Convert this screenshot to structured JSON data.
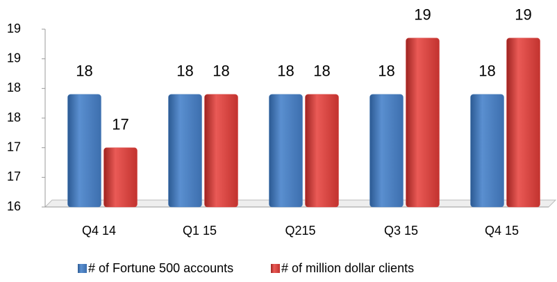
{
  "chart_data": {
    "type": "bar",
    "categories": [
      "Q4 14",
      "Q1 15",
      "Q215",
      "Q3 15",
      "Q4 15"
    ],
    "series": [
      {
        "name": "# of Fortune 500 accounts",
        "color": "#4a7ebb",
        "values": [
          17.9,
          17.9,
          17.9,
          17.9,
          17.9
        ],
        "value_labels": [
          "18",
          "18",
          "18",
          "18",
          "18"
        ]
      },
      {
        "name": "# of million dollar clients",
        "color": "#d9413e",
        "values": [
          17.0,
          17.9,
          17.9,
          18.85,
          18.85
        ],
        "value_labels": [
          "17",
          "18",
          "18",
          "19",
          "19"
        ]
      }
    ],
    "ylim": [
      16,
      19
    ],
    "yticks": [
      16,
      {
        "value": 16.5,
        "label": "17"
      },
      {
        "value": 17,
        "label": "17"
      },
      {
        "value": 17.5,
        "label": "18"
      },
      {
        "value": 18,
        "label": "18"
      },
      {
        "value": 18.5,
        "label": "19"
      },
      {
        "value": 19,
        "label": "19"
      }
    ],
    "legend": "bottom"
  }
}
